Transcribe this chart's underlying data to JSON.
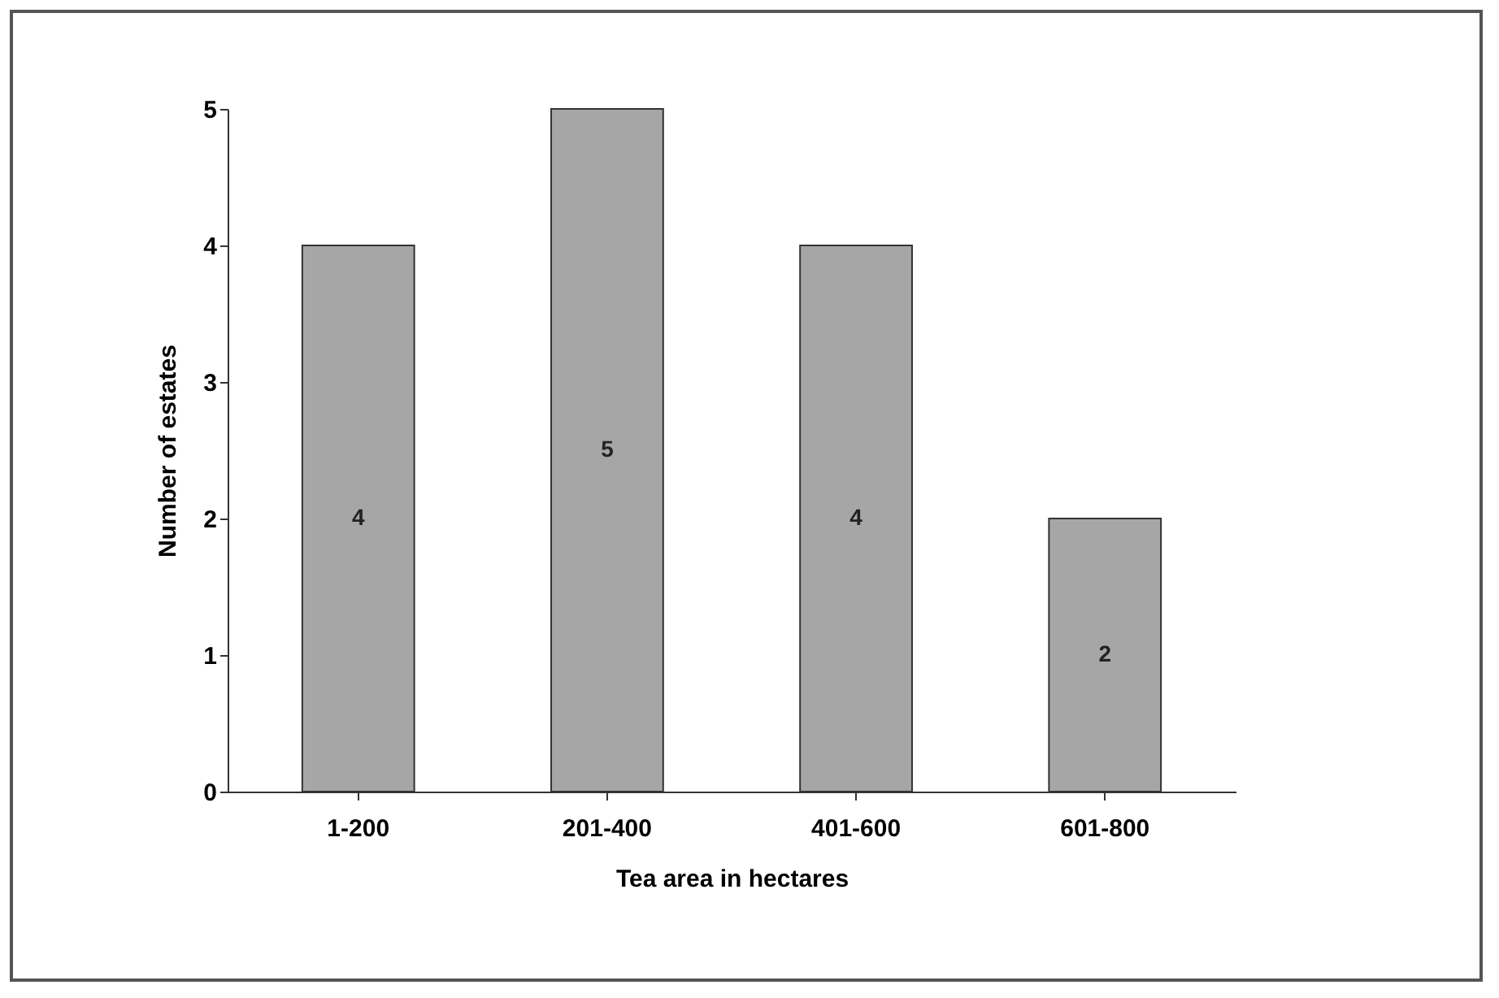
{
  "chart_data": {
    "type": "bar",
    "xlabel": "Tea area in hectares",
    "ylabel": "Number of estates",
    "categories": [
      "1-200",
      "201-400",
      "401-600",
      "601-800"
    ],
    "values": [
      4,
      5,
      4,
      2
    ],
    "color": "#a6a6a6",
    "ylim": [
      0,
      5
    ],
    "yticks": [
      0,
      1,
      2,
      3,
      4,
      5
    ],
    "grid": false,
    "data_labels": true
  }
}
